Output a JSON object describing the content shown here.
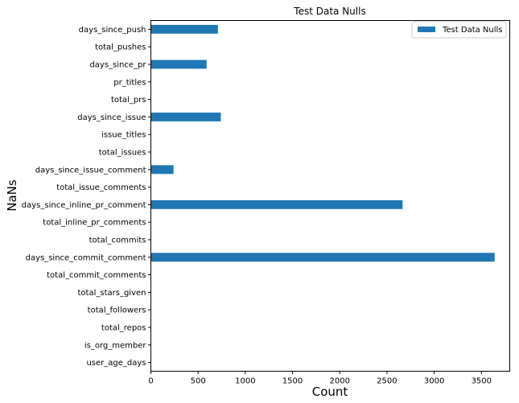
{
  "chart_data": {
    "type": "bar",
    "orientation": "horizontal",
    "title": "Test Data Nulls",
    "xlabel": "Count",
    "ylabel": "NaNs",
    "xlim": [
      0,
      3800
    ],
    "xticks": [
      0,
      500,
      1000,
      1500,
      2000,
      2500,
      3000,
      3500
    ],
    "grid": false,
    "legend_position": "top-right",
    "categories": [
      "user_age_days",
      "is_org_member",
      "total_repos",
      "total_followers",
      "total_stars_given",
      "total_commit_comments",
      "days_since_commit_comment",
      "total_commits",
      "total_inline_pr_comments",
      "days_since_inline_pr_comment",
      "total_issue_comments",
      "days_since_issue_comment",
      "total_issues",
      "issue_titles",
      "days_since_issue",
      "total_prs",
      "pr_titles",
      "days_since_pr",
      "total_pushes",
      "days_since_push"
    ],
    "series": [
      {
        "name": "Test Data Nulls",
        "color": "#1f77b4",
        "values": [
          0,
          0,
          0,
          0,
          0,
          0,
          3640,
          0,
          0,
          2665,
          0,
          240,
          0,
          0,
          740,
          0,
          0,
          590,
          0,
          710
        ]
      }
    ]
  }
}
